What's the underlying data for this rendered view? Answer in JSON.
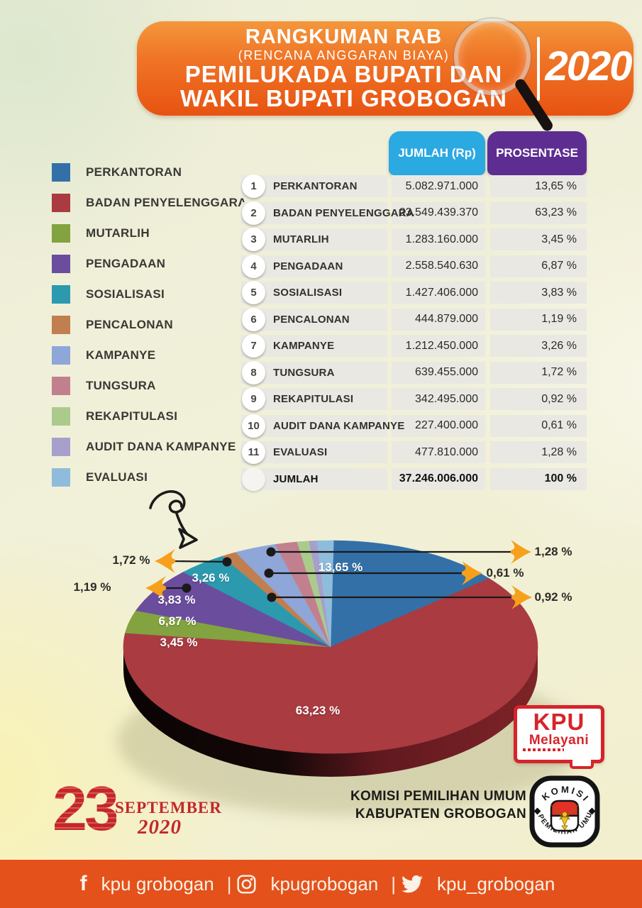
{
  "header": {
    "title_line1": "RANGKUMAN RAB",
    "title_line2": "(RENCANA ANGGARAN BIAYA)",
    "title_line3": "PEMILUKADA BUPATI DAN",
    "title_line4": "WAKIL BUPATI GROBOGAN",
    "year": "2020"
  },
  "table": {
    "col_jumlah": "JUMLAH (Rp)",
    "col_prosentase": "PROSENTASE",
    "header_colors": {
      "jumlah": "#2ba9e1",
      "prosentase": "#5e2d91"
    },
    "rows": [
      {
        "no": "1",
        "label": "PERKANTORAN",
        "jumlah": "5.082.971.000",
        "pct": "13,65 %"
      },
      {
        "no": "2",
        "label": "BADAN PENYELENGGARA",
        "jumlah": "23.549.439.370",
        "pct": "63,23 %"
      },
      {
        "no": "3",
        "label": "MUTARLIH",
        "jumlah": "1.283.160.000",
        "pct": "3,45 %"
      },
      {
        "no": "4",
        "label": "PENGADAAN",
        "jumlah": "2.558.540.630",
        "pct": "6,87 %"
      },
      {
        "no": "5",
        "label": "SOSIALISASI",
        "jumlah": "1.427.406.000",
        "pct": "3,83 %"
      },
      {
        "no": "6",
        "label": "PENCALONAN",
        "jumlah": "444.879.000",
        "pct": "1,19 %"
      },
      {
        "no": "7",
        "label": "KAMPANYE",
        "jumlah": "1.212.450.000",
        "pct": "3,26 %"
      },
      {
        "no": "8",
        "label": "TUNGSURA",
        "jumlah": "639.455.000",
        "pct": "1,72 %"
      },
      {
        "no": "9",
        "label": "REKAPITULASI",
        "jumlah": "342.495.000",
        "pct": "0,92 %"
      },
      {
        "no": "10",
        "label": "AUDIT DANA KAMPANYE",
        "jumlah": "227.400.000",
        "pct": "0,61 %"
      },
      {
        "no": "11",
        "label": "EVALUASI",
        "jumlah": "477.810.000",
        "pct": "1,28 %"
      }
    ],
    "total": {
      "label": "JUMLAH",
      "jumlah": "37.246.006.000",
      "pct": "100 %"
    }
  },
  "legend": {
    "items": [
      {
        "label": "PERKANTORAN",
        "color": "#3470a8"
      },
      {
        "label": "BADAN PENYELENGGARA",
        "color": "#a93b41"
      },
      {
        "label": "MUTARLIH",
        "color": "#82a33f"
      },
      {
        "label": "PENGADAAN",
        "color": "#6b4d9e"
      },
      {
        "label": "SOSIALISASI",
        "color": "#2b9aaf"
      },
      {
        "label": "PENCALONAN",
        "color": "#c17e4f"
      },
      {
        "label": "KAMPANYE",
        "color": "#8fa6d8"
      },
      {
        "label": "TUNGSURA",
        "color": "#c2808e"
      },
      {
        "label": "REKAPITULASI",
        "color": "#abcb8d"
      },
      {
        "label": "AUDIT DANA KAMPANYE",
        "color": "#a79fcc"
      },
      {
        "label": "EVALUASI",
        "color": "#90bcdc"
      }
    ]
  },
  "chart_data": {
    "type": "pie",
    "style": "3d-pie",
    "legend_position": "left",
    "categories": [
      "PERKANTORAN",
      "BADAN PENYELENGGARA",
      "MUTARLIH",
      "PENGADAAN",
      "SOSIALISASI",
      "PENCALONAN",
      "KAMPANYE",
      "TUNGSURA",
      "REKAPITULASI",
      "AUDIT DANA KAMPANYE",
      "EVALUASI"
    ],
    "values": [
      13.65,
      63.23,
      3.45,
      6.87,
      3.83,
      1.19,
      3.26,
      1.72,
      0.92,
      0.61,
      1.28
    ],
    "value_labels": [
      "13,65 %",
      "63,23 %",
      "3,45 %",
      "6,87 %",
      "3,83 %",
      "1,19 %",
      "3,26 %",
      "1,72 %",
      "0,92 %",
      "0,61 %",
      "1,28 %"
    ],
    "amounts_rp": [
      "5.082.971.000",
      "23.549.439.370",
      "1.283.160.000",
      "2.558.540.630",
      "1.427.406.000",
      "444.879.000",
      "1.212.450.000",
      "639.455.000",
      "342.495.000",
      "227.400.000",
      "477.810.000"
    ],
    "total_rp": "37.246.006.000",
    "total_pct": "100 %",
    "colors": [
      "#3470a8",
      "#a93b41",
      "#82a33f",
      "#6b4d9e",
      "#2b9aaf",
      "#c17e4f",
      "#8fa6d8",
      "#c2808e",
      "#abcb8d",
      "#a79fcc",
      "#90bcdc"
    ],
    "callout_marker_color": "#f6a01b"
  },
  "stamp": {
    "day": "23",
    "month": "SEPTEMBER",
    "year": "2020"
  },
  "kpu_box": {
    "line1": "KPU",
    "line2": "Melayani"
  },
  "org": {
    "line1": "KOMISI PEMILIHAN UMUM",
    "line2": "KABUPATEN GROBOGAN"
  },
  "seal": {
    "top": "KOMISI",
    "bottom": "PEMILIHAN UMUM"
  },
  "footer": {
    "facebook": "kpu grobogan",
    "instagram": "kpugrobogan",
    "twitter": "kpu_grobogan",
    "separator": "|"
  }
}
